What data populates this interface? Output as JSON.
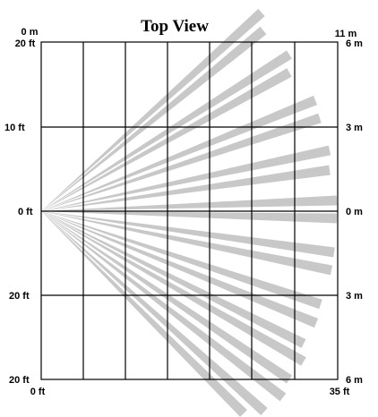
{
  "title": "Top View",
  "corner_labels": {
    "top_left_m": "0 m",
    "top_left_ft": "20 ft",
    "top_right_m": "11 m",
    "bottom_left_ft": "0 ft",
    "bottom_right_ft": "35 ft"
  },
  "left_labels": [
    "10 ft",
    "0 ft",
    "20 ft",
    "20 ft"
  ],
  "right_labels": [
    "6 m",
    "3 m",
    "0 m",
    "3 m",
    "6 m"
  ],
  "colors": {
    "beam": "#c8c8c8",
    "grid": "#000000"
  },
  "beam_count": 20
}
